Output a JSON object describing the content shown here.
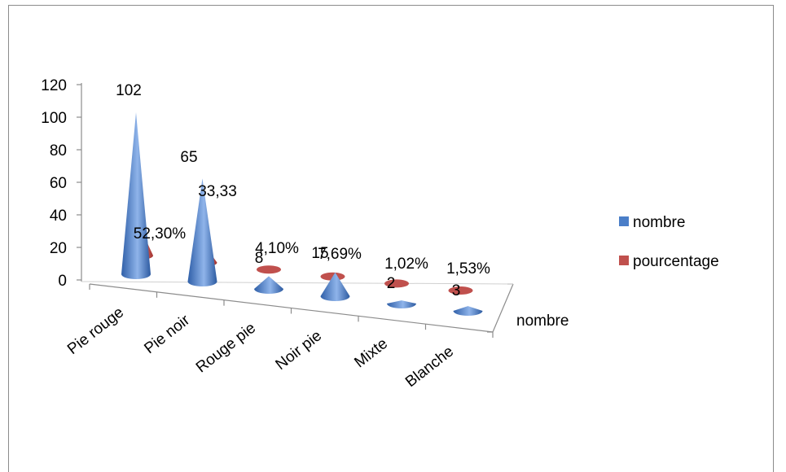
{
  "chart_data": {
    "type": "bar",
    "variant": "3d-cone",
    "title": "",
    "categories": [
      "Pie rouge",
      "Pie noir",
      "Rouge pie",
      "Noir pie",
      "Mixte",
      "Blanche"
    ],
    "series": [
      {
        "name": "nombre",
        "values": [
          102,
          65,
          8,
          15,
          2,
          3
        ],
        "labels": [
          "102",
          "65",
          "8",
          "15",
          "2",
          "3"
        ],
        "color": "#4a7ec8"
      },
      {
        "name": "pourcentage",
        "values": [
          52.3,
          33.33,
          4.1,
          7.69,
          1.02,
          1.53
        ],
        "labels": [
          "52,30%",
          "33,33",
          "4,10%",
          "7,69%",
          "1,02%",
          "1,53%"
        ],
        "color": "#c0504d"
      }
    ],
    "yticks": [
      "0",
      "20",
      "40",
      "60",
      "80",
      "100",
      "120"
    ],
    "ylim": [
      0,
      120
    ],
    "depth_axis_label": "nombre",
    "legend": {
      "position": "right",
      "entries": [
        "nombre",
        "pourcentage"
      ]
    }
  }
}
